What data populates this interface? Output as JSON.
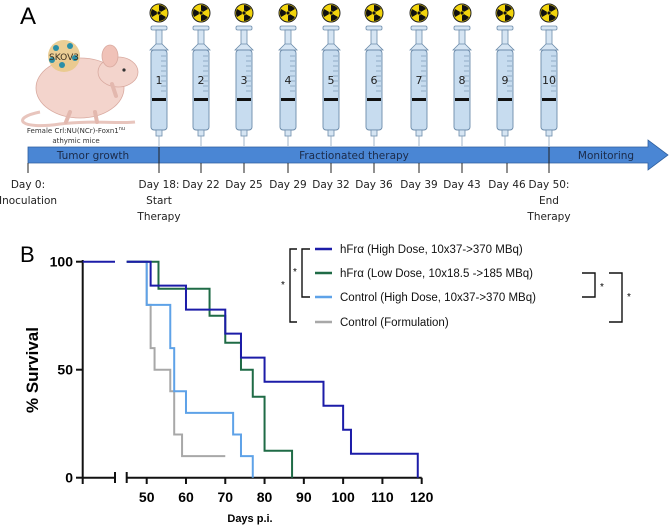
{
  "panel_a": {
    "label": "A",
    "mouse": {
      "tumor_label": "SKOV3",
      "caption_line1": "Female Crl:NU(NCr)-Foxn1",
      "caption_sup": "nu",
      "caption_line2": "athymic mice"
    },
    "injections": [
      "1",
      "2",
      "3",
      "4",
      "5",
      "6",
      "7",
      "8",
      "9",
      "10"
    ],
    "radiation_icon": "radiation-trefoil",
    "phases": [
      "Tumor growth",
      "Fractionated therapy",
      "Monitoring"
    ],
    "timepoints": [
      {
        "line1": "Day 0:",
        "line2": "Inoculation",
        "line3": ""
      },
      {
        "line1": "Day 18:",
        "line2": "Start",
        "line3": "Therapy"
      },
      {
        "line1": "Day 22",
        "line2": "",
        "line3": ""
      },
      {
        "line1": "Day 25",
        "line2": "",
        "line3": ""
      },
      {
        "line1": "Day 29",
        "line2": "",
        "line3": ""
      },
      {
        "line1": "Day 32",
        "line2": "",
        "line3": ""
      },
      {
        "line1": "Day 36",
        "line2": "",
        "line3": ""
      },
      {
        "line1": "Day 39",
        "line2": "",
        "line3": ""
      },
      {
        "line1": "Day 43",
        "line2": "",
        "line3": ""
      },
      {
        "line1": "Day 46",
        "line2": "",
        "line3": ""
      },
      {
        "line1": "Day 50:",
        "line2": "End",
        "line3": "Therapy"
      }
    ],
    "colors": {
      "timeline_bar": "#4a86d4",
      "radiation": "#f2d40c"
    }
  },
  "panel_b": {
    "label": "B"
  },
  "chart_data": {
    "type": "line",
    "step": true,
    "title": "",
    "xlabel": "Days p.i.",
    "ylabel": "% Survival",
    "xlim": [
      50,
      120
    ],
    "ylim": [
      0,
      100
    ],
    "x_axis_break": true,
    "xticks": [
      "50",
      "60",
      "70",
      "80",
      "90",
      "100",
      "110",
      "120"
    ],
    "yticks": [
      "0",
      "50",
      "100"
    ],
    "grid": false,
    "legend": "top-right",
    "series": [
      {
        "name": "hFrα (High Dose, 10x37->370 MBq)",
        "color": "#1c1ca8",
        "x": [
          51,
          60,
          70,
          74,
          80,
          95,
          100,
          102,
          119
        ],
        "y": [
          88.9,
          77.8,
          66.7,
          55.6,
          44.4,
          33.3,
          22.2,
          11.1,
          0
        ]
      },
      {
        "name": "hFrα (Low Dose, 10x18.5 ->185 MBq)",
        "color": "#1f6b46",
        "x": [
          53,
          66,
          70,
          74,
          77,
          80,
          87
        ],
        "y": [
          87.5,
          75,
          62.5,
          50,
          37.5,
          12.5,
          0
        ]
      },
      {
        "name": "Control (High Dose, 10x37->370 MBq)",
        "color": "#5ea2e8",
        "x": [
          50,
          56,
          57,
          60,
          72,
          74,
          77
        ],
        "y": [
          80,
          60,
          40,
          30,
          20,
          10,
          0
        ]
      },
      {
        "name": "Control (Formulation)",
        "color": "#a8a8a8",
        "x": [
          50,
          51,
          52,
          56,
          57,
          59
        ],
        "y": [
          80,
          60,
          50,
          40,
          20,
          10
        ],
        "end": 70
      }
    ],
    "significance": [
      {
        "label": "*",
        "pair": [
          "hFrα (High Dose, 10x37->370 MBq)",
          "Control (High Dose, 10x37->370 MBq)"
        ]
      },
      {
        "label": "*",
        "pair": [
          "hFrα (High Dose, 10x37->370 MBq)",
          "Control (Formulation)"
        ]
      },
      {
        "label": "*",
        "pair": [
          "hFrα (Low Dose, 10x18.5 ->185 MBq)",
          "Control (High Dose, 10x37->370 MBq)"
        ]
      },
      {
        "label": "*",
        "pair": [
          "hFrα (Low Dose, 10x18.5 ->185 MBq)",
          "Control (Formulation)"
        ]
      }
    ]
  }
}
